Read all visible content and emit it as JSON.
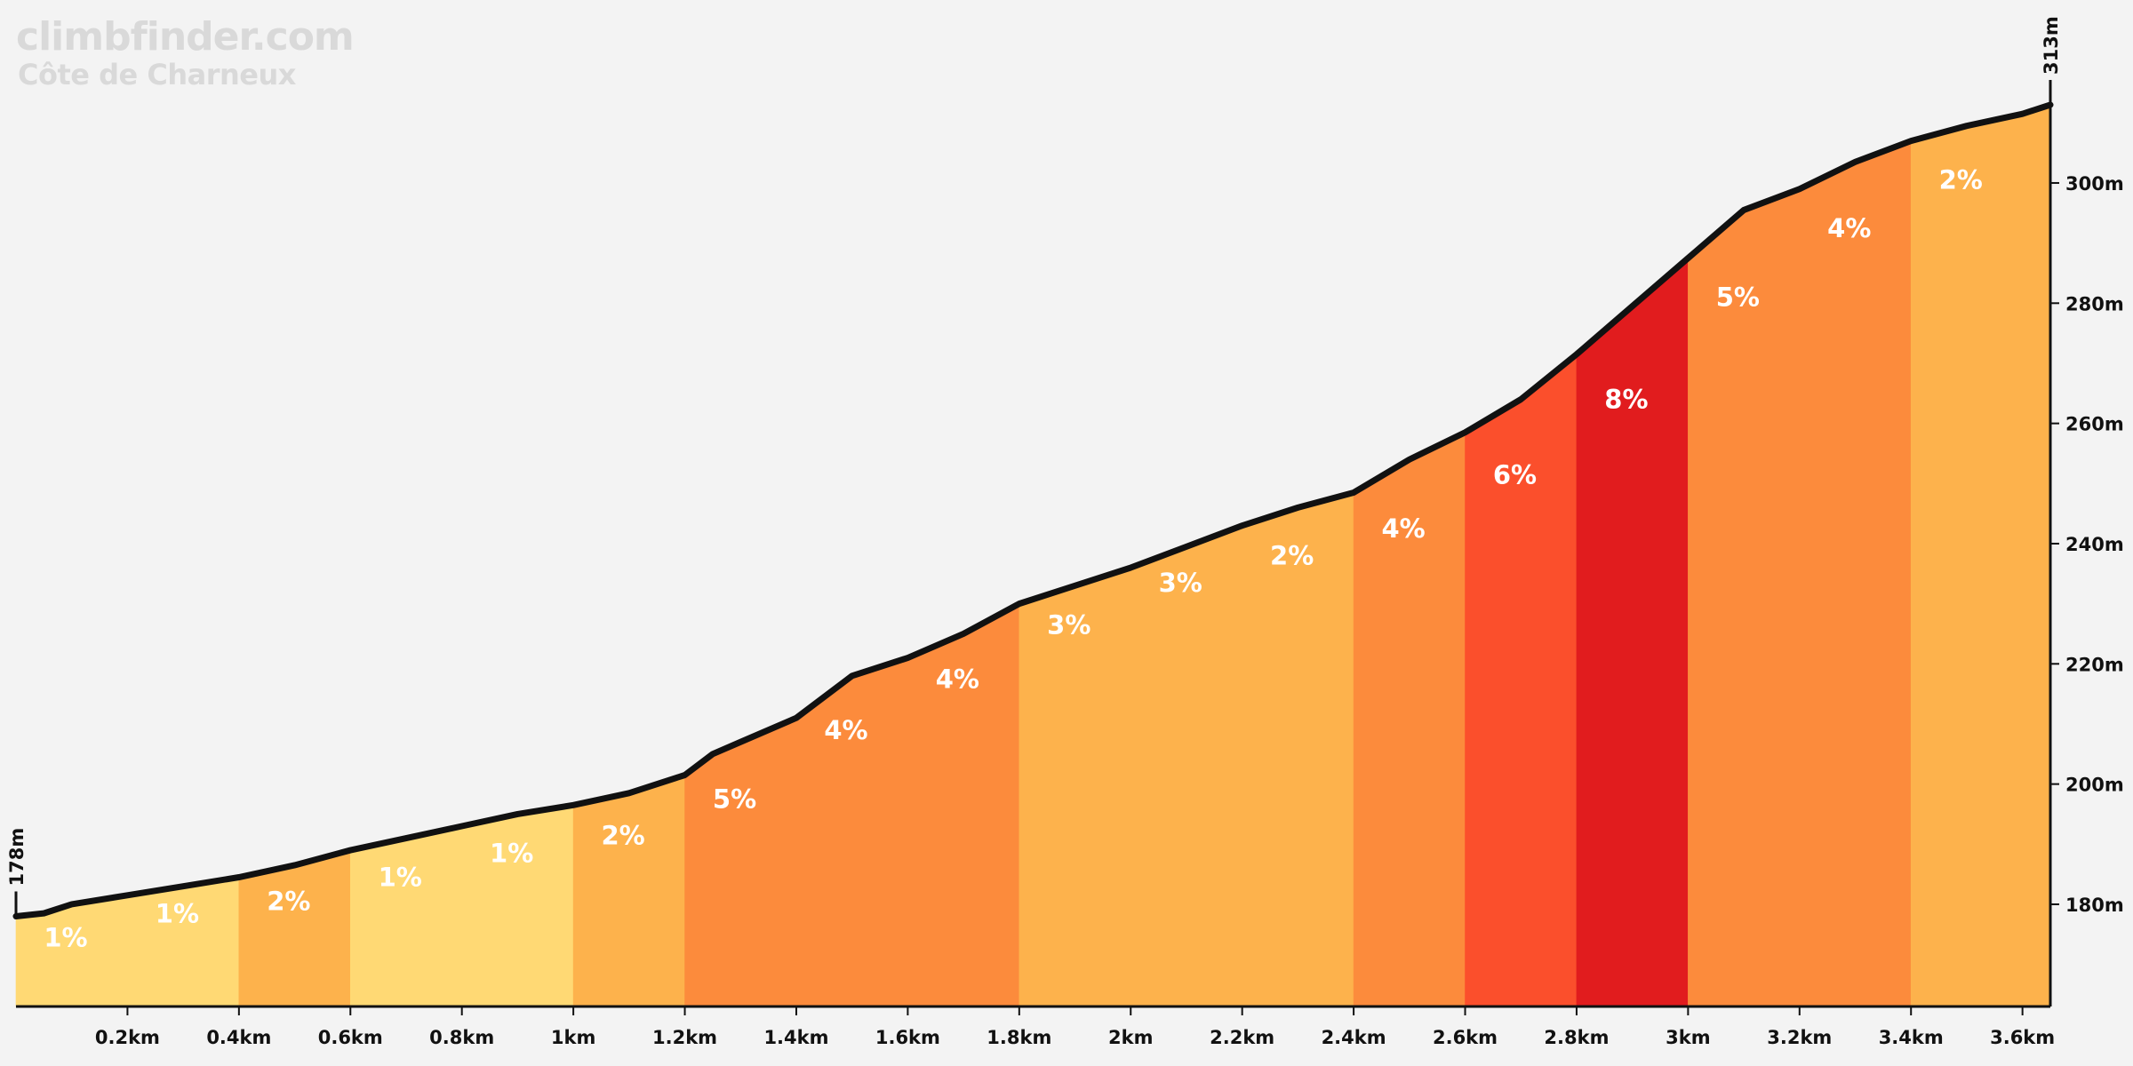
{
  "branding": {
    "site": "climbfinder.com",
    "climb_name": "Côte de Charneux"
  },
  "colors": {
    "background": "#f3f3f3",
    "profile_line": "#111111",
    "grade_1": "#ffd974",
    "grade_2": "#fdb24c",
    "grade_3": "#fdb24c",
    "grade_4": "#fc8b3c",
    "grade_5": "#fc8b3c",
    "grade_6": "#fb4f2c",
    "grade_8": "#e11c1e"
  },
  "chart_data": {
    "type": "area",
    "title": "Côte de Charneux",
    "xlabel": "",
    "ylabel": "",
    "x_unit": "km",
    "y_unit": "m",
    "xlim": [
      0,
      3.65
    ],
    "ylim": [
      163,
      313
    ],
    "x_ticks": [
      0.2,
      0.4,
      0.6,
      0.8,
      1.0,
      1.2,
      1.4,
      1.6,
      1.8,
      2.0,
      2.2,
      2.4,
      2.6,
      2.8,
      3.0,
      3.2,
      3.4,
      3.6
    ],
    "x_tick_labels": [
      "0.2km",
      "0.4km",
      "0.6km",
      "0.8km",
      "1km",
      "1.2km",
      "1.4km",
      "1.6km",
      "1.8km",
      "2km",
      "2.2km",
      "2.4km",
      "2.6km",
      "2.8km",
      "3km",
      "3.2km",
      "3.4km",
      "3.6km"
    ],
    "y_ticks": [
      180,
      200,
      220,
      240,
      260,
      280,
      300
    ],
    "y_tick_labels": [
      "180m",
      "200m",
      "220m",
      "240m",
      "260m",
      "280m",
      "300m"
    ],
    "start_label": "178m",
    "end_label": "313m",
    "grid": false,
    "profile": {
      "x": [
        0,
        0.05,
        0.1,
        0.2,
        0.3,
        0.4,
        0.5,
        0.6,
        0.7,
        0.8,
        0.9,
        1.0,
        1.1,
        1.2,
        1.25,
        1.3,
        1.4,
        1.5,
        1.6,
        1.7,
        1.8,
        1.9,
        2.0,
        2.1,
        2.2,
        2.3,
        2.4,
        2.5,
        2.6,
        2.7,
        2.8,
        2.9,
        3.0,
        3.1,
        3.2,
        3.3,
        3.4,
        3.5,
        3.6,
        3.65
      ],
      "y": [
        178,
        178.5,
        180,
        181.5,
        183,
        184.5,
        186.5,
        189,
        191,
        193,
        195,
        196.5,
        198.5,
        201.5,
        205,
        207,
        211,
        218,
        221,
        225,
        230,
        233,
        236,
        239.5,
        243,
        246,
        248.5,
        254,
        258.5,
        264,
        271.5,
        279.5,
        287.5,
        295.5,
        299,
        303.5,
        307,
        309.5,
        311.5,
        313
      ]
    },
    "segments": [
      {
        "start": 0.0,
        "end": 0.4,
        "grade": 1,
        "label": "1%",
        "color": "#ffd974"
      },
      {
        "start": 0.4,
        "end": 0.6,
        "grade": 2,
        "label": "2%",
        "color": "#fdb24c"
      },
      {
        "start": 0.6,
        "end": 1.0,
        "grade": 1,
        "label": "1%",
        "color": "#ffd974"
      },
      {
        "start": 1.0,
        "end": 1.2,
        "grade": 2,
        "label": "2%",
        "color": "#fdb24c"
      },
      {
        "start": 1.2,
        "end": 1.8,
        "grade": 4,
        "label": "4%",
        "color": "#fc8b3c"
      },
      {
        "start": 1.8,
        "end": 2.4,
        "grade": 3,
        "label": "3%",
        "color": "#fdb24c"
      },
      {
        "start": 2.4,
        "end": 2.6,
        "grade": 4,
        "label": "4%",
        "color": "#fc8b3c"
      },
      {
        "start": 2.6,
        "end": 2.8,
        "grade": 6,
        "label": "6%",
        "color": "#fb4f2c"
      },
      {
        "start": 2.8,
        "end": 3.0,
        "grade": 8,
        "label": "8%",
        "color": "#e11c1e"
      },
      {
        "start": 3.0,
        "end": 3.4,
        "grade": 4,
        "label": "4%",
        "color": "#fc8b3c"
      },
      {
        "start": 3.4,
        "end": 3.65,
        "grade": 2,
        "label": "2%",
        "color": "#fdb24c"
      }
    ],
    "grade_labels": [
      {
        "x": 0.05,
        "y": 173,
        "text": "1%"
      },
      {
        "x": 0.25,
        "y": 177,
        "text": "1%"
      },
      {
        "x": 0.45,
        "y": 179,
        "text": "2%"
      },
      {
        "x": 0.65,
        "y": 183,
        "text": "1%"
      },
      {
        "x": 0.85,
        "y": 187,
        "text": "1%"
      },
      {
        "x": 1.05,
        "y": 190,
        "text": "2%"
      },
      {
        "x": 1.25,
        "y": 196,
        "text": "5%"
      },
      {
        "x": 1.45,
        "y": 207.5,
        "text": "4%"
      },
      {
        "x": 1.65,
        "y": 216,
        "text": "4%"
      },
      {
        "x": 1.85,
        "y": 225,
        "text": "3%"
      },
      {
        "x": 2.05,
        "y": 232,
        "text": "3%"
      },
      {
        "x": 2.25,
        "y": 236.5,
        "text": "2%"
      },
      {
        "x": 2.45,
        "y": 241,
        "text": "4%"
      },
      {
        "x": 2.65,
        "y": 250,
        "text": "6%"
      },
      {
        "x": 2.85,
        "y": 262.5,
        "text": "8%"
      },
      {
        "x": 3.05,
        "y": 279.5,
        "text": "5%"
      },
      {
        "x": 3.25,
        "y": 291,
        "text": "4%"
      },
      {
        "x": 3.45,
        "y": 299,
        "text": "2%"
      }
    ]
  }
}
